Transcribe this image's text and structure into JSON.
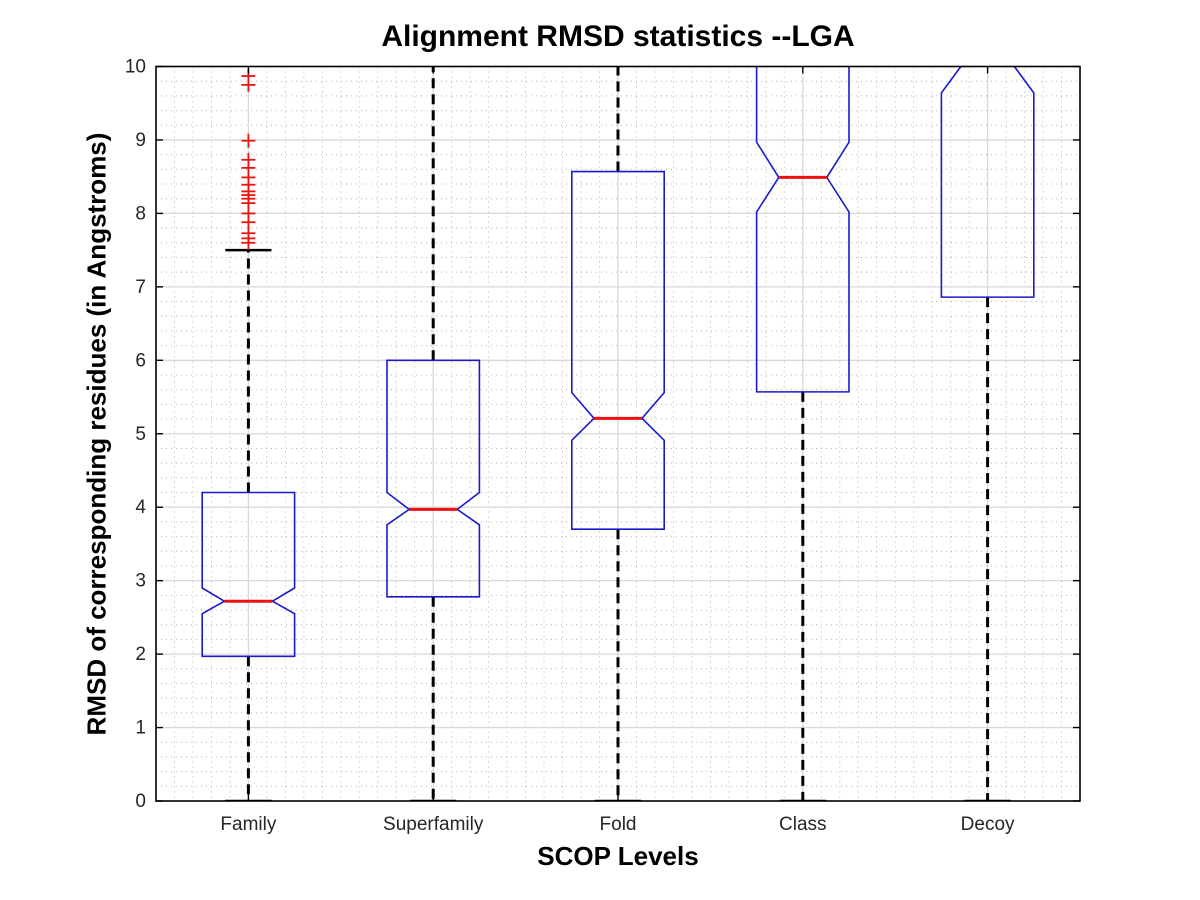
{
  "chart_data": {
    "type": "boxplot",
    "title": "Alignment RMSD statistics --LGA",
    "xlabel": "SCOP Levels",
    "ylabel": "RMSD of corresponding residues (in Angstroms)",
    "categories": [
      "Family",
      "Superfamily",
      "Fold",
      "Class",
      "Decoy"
    ],
    "ylim": [
      0,
      10
    ],
    "yticks": [
      0,
      1,
      2,
      3,
      4,
      5,
      6,
      7,
      8,
      9,
      10
    ],
    "grid": {
      "major": true,
      "minor": true,
      "x_minor_step": 0.1,
      "y_minor_step": 0.2,
      "legend": "none"
    },
    "boxes": [
      {
        "label": "Family",
        "whisker_low": 0,
        "q1": 1.97,
        "median": 2.72,
        "q3": 4.2,
        "whisker_high": 7.5,
        "notch_low": 2.55,
        "notch_high": 2.9,
        "clipped_top": false,
        "outliers": [
          9.87,
          9.75,
          8.99,
          8.73,
          8.62,
          8.49,
          8.39,
          8.3,
          8.25,
          8.2,
          8.14,
          8.0,
          7.88,
          7.73,
          7.66,
          7.6
        ]
      },
      {
        "label": "Superfamily",
        "whisker_low": 0,
        "q1": 2.78,
        "median": 3.97,
        "q3": 6.0,
        "whisker_high": 10.6,
        "notch_low": 3.76,
        "notch_high": 4.2,
        "clipped_top": true,
        "outliers": []
      },
      {
        "label": "Fold",
        "whisker_low": 0,
        "q1": 3.7,
        "median": 5.21,
        "q3": 8.57,
        "whisker_high": 10.6,
        "notch_low": 4.91,
        "notch_high": 5.56,
        "clipped_top": true,
        "outliers": []
      },
      {
        "label": "Class",
        "whisker_low": 0,
        "q1": 5.57,
        "median": 8.49,
        "q3": 10.5,
        "whisker_high": 10.8,
        "notch_low": 8.02,
        "notch_high": 8.97,
        "clipped_top": true,
        "outliers": []
      },
      {
        "label": "Decoy",
        "whisker_low": 0,
        "q1": 6.86,
        "median": 10.05,
        "q3": 10.6,
        "whisker_high": 10.9,
        "notch_low": 9.64,
        "notch_high": 10.45,
        "clipped_top": true,
        "outliers": []
      }
    ],
    "colors": {
      "box": "#1a1acd",
      "median": "#ee1111",
      "outlier": "#ee1111",
      "whisker": "#000000",
      "axis": "#000000",
      "major_grid": "#d9d9d9",
      "minor_grid": "#b4b4b4",
      "tick_label": "#262626",
      "background": "#ffffff"
    }
  }
}
